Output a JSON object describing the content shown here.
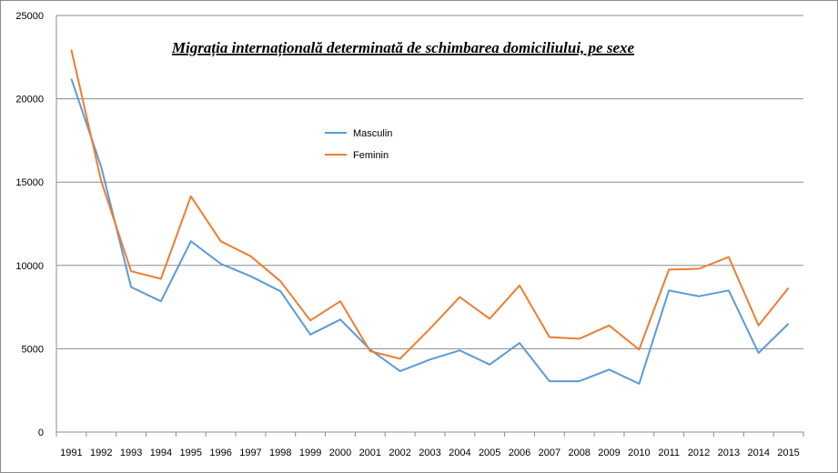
{
  "chart_data": {
    "type": "line",
    "title": "Migrația internațională determinată de schimbarea domiciliului, pe sexe",
    "xlabel": "",
    "ylabel": "",
    "ylim": [
      0,
      25000
    ],
    "yticks": [
      0,
      5000,
      10000,
      15000,
      20000,
      25000
    ],
    "grid": true,
    "legend_position": "upper-center",
    "categories": [
      "1991",
      "1992",
      "1993",
      "1994",
      "1995",
      "1996",
      "1997",
      "1998",
      "1999",
      "2000",
      "2001",
      "2002",
      "2003",
      "2004",
      "2005",
      "2006",
      "2007",
      "2008",
      "2009",
      "2010",
      "2011",
      "2012",
      "2013",
      "2014",
      "2015"
    ],
    "series": [
      {
        "name": "Masculin",
        "color": "#5b9bd5",
        "values": [
          21200,
          15900,
          8700,
          7850,
          11450,
          10100,
          9350,
          8450,
          5850,
          6750,
          4950,
          3650,
          4350,
          4900,
          4050,
          5350,
          3050,
          3050,
          3750,
          2900,
          8500,
          8150,
          8500,
          4750,
          6500
        ]
      },
      {
        "name": "Feminin",
        "color": "#ed7d31",
        "values": [
          22950,
          15050,
          9650,
          9200,
          14150,
          11450,
          10550,
          9050,
          6700,
          7850,
          4850,
          4400,
          6200,
          8100,
          6800,
          8800,
          5700,
          5600,
          6400,
          4950,
          9750,
          9800,
          10500,
          6400,
          8650
        ]
      }
    ]
  }
}
